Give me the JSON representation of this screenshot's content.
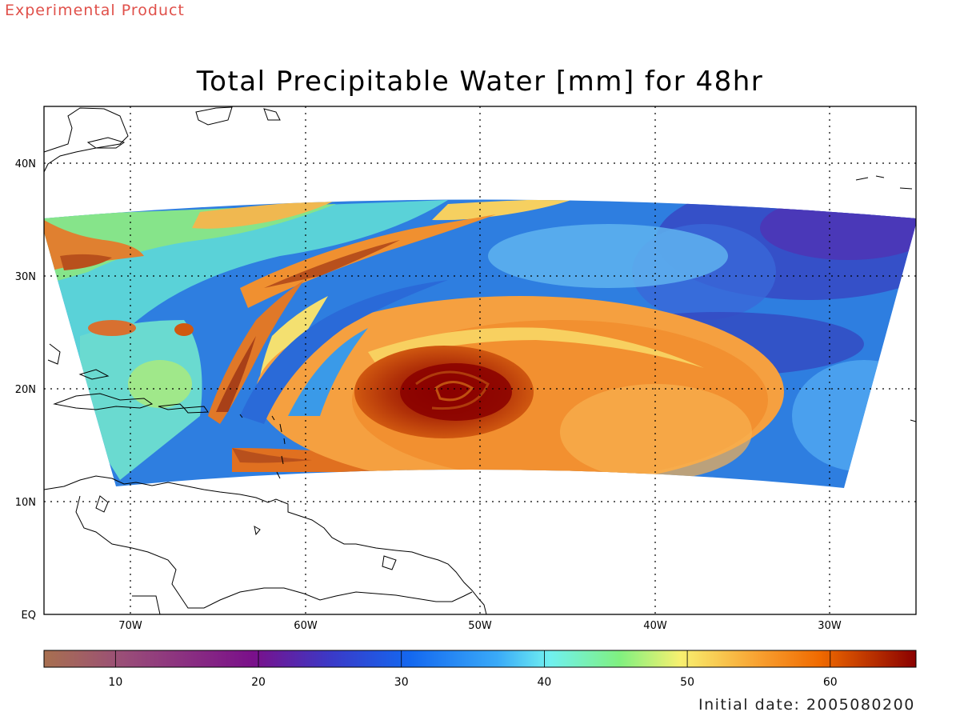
{
  "header": {
    "product_label": "Experimental Product",
    "title": "Total Precipitable Water [mm] for 48hr"
  },
  "footer": {
    "initial_date": "Initial date: 2005080200"
  },
  "map": {
    "lon_ticks": [
      "70W",
      "60W",
      "50W",
      "40W",
      "30W"
    ],
    "lat_ticks": [
      "40N",
      "30N",
      "20N",
      "10N",
      "EQ"
    ],
    "lon_range": [
      -75,
      -25
    ],
    "lat_range": [
      0,
      45
    ],
    "grid": "dotted",
    "feature": "tropical cyclone centered near 19N 51W"
  },
  "colorbar": {
    "range": [
      5,
      66
    ],
    "tick_labels": [
      "10",
      "20",
      "30",
      "40",
      "50",
      "60"
    ],
    "colors": [
      "#a87050",
      "#9a4e78",
      "#7a108a",
      "#3a3ac8",
      "#1468f0",
      "#3aaaf8",
      "#70f0f0",
      "#80f080",
      "#f8f070",
      "#f8a030",
      "#f06a00",
      "#8a0000"
    ]
  }
}
